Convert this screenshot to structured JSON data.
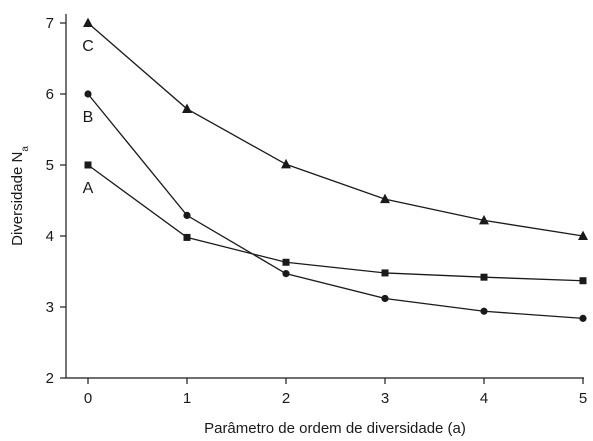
{
  "chart_data": {
    "type": "line",
    "xlabel": "Parâmetro de ordem de diversidade (a)",
    "ylabel_main": "Diversidade N",
    "ylabel_sub": "a",
    "x": [
      0,
      1,
      2,
      3,
      4,
      5
    ],
    "xticks": [
      "0",
      "1",
      "2",
      "3",
      "4",
      "5"
    ],
    "yticks": [
      "2",
      "3",
      "4",
      "5",
      "6",
      "7"
    ],
    "xlim": [
      0,
      5
    ],
    "ylim": [
      2,
      7
    ],
    "grid": false,
    "series": [
      {
        "name": "A",
        "marker": "square",
        "values": [
          5.0,
          3.98,
          3.63,
          3.48,
          3.42,
          3.37
        ]
      },
      {
        "name": "B",
        "marker": "circle",
        "values": [
          6.0,
          4.29,
          3.47,
          3.12,
          2.94,
          2.84
        ]
      },
      {
        "name": "C",
        "marker": "triangle",
        "values": [
          7.0,
          5.79,
          5.01,
          4.52,
          4.22,
          4.0
        ]
      }
    ]
  }
}
